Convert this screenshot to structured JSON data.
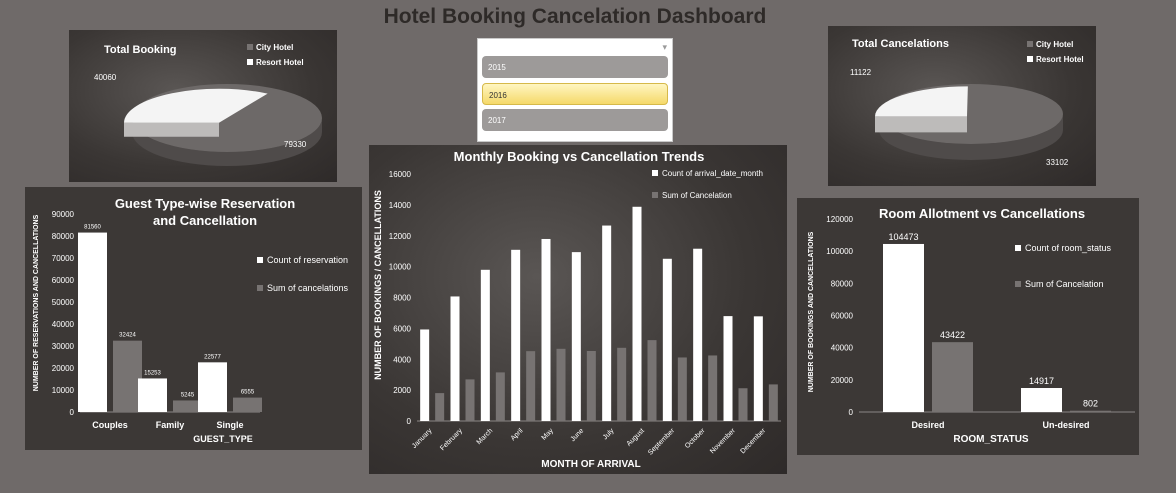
{
  "dashboard_title": "Hotel Booking Cancelation Dashboard",
  "colors": {
    "background": "#6f6a69",
    "series_light": "#ffffff",
    "series_dark": "#777372",
    "text_light": "#ffffff"
  },
  "slicer": {
    "items": [
      {
        "label": "2015",
        "selected": false
      },
      {
        "label": "2016",
        "selected": true
      },
      {
        "label": "2017",
        "selected": false
      }
    ]
  },
  "chart_data": [
    {
      "id": "total_booking",
      "type": "pie",
      "title": "Total Booking",
      "legend": [
        "City Hotel",
        "Resort Hotel"
      ],
      "labels": [
        "City Hotel",
        "Resort Hotel"
      ],
      "values": [
        79330,
        40060
      ]
    },
    {
      "id": "total_cancelations",
      "type": "pie",
      "title": "Total Cancelations",
      "legend": [
        "City Hotel",
        "Resort Hotel"
      ],
      "labels": [
        "City Hotel",
        "Resort Hotel"
      ],
      "values": [
        33102,
        11122
      ]
    },
    {
      "id": "guest_type",
      "type": "bar",
      "title": "Guest Type-wise Reservation and Cancellation",
      "title_lines": [
        "Guest Type-wise Reservation",
        "and Cancellation"
      ],
      "xlabel": "GUEST_TYPE",
      "ylabel": "NUMBER OF RESERVATIONS AND CANCELLATIONS",
      "categories": [
        "Couples",
        "Family",
        "Single"
      ],
      "series": [
        {
          "name": "Count of reservation",
          "values": [
            81560,
            15253,
            22577
          ]
        },
        {
          "name": "Sum of cancelations",
          "values": [
            32424,
            5245,
            6555
          ]
        }
      ],
      "ylim": [
        0,
        90000
      ],
      "yticks": [
        "0",
        "10000",
        "20000",
        "30000",
        "40000",
        "50000",
        "60000",
        "70000",
        "80000",
        "90000"
      ],
      "legend_position": "right"
    },
    {
      "id": "monthly",
      "type": "bar",
      "title": "Monthly Booking vs Cancellation Trends",
      "xlabel": "MONTH OF ARRIVAL",
      "ylabel": "NUMBER OF BOOKINGS / CANCELLATIONS",
      "categories": [
        "January",
        "February",
        "March",
        "April",
        "May",
        "June",
        "July",
        "August",
        "September",
        "October",
        "November",
        "December"
      ],
      "series": [
        {
          "name": "Count of arrival_date_month",
          "values": [
            5929,
            8068,
            9794,
            11089,
            11791,
            10939,
            12661,
            13877,
            10508,
            11160,
            6794,
            6780
          ]
        },
        {
          "name": "Sum of Cancelation",
          "values": [
            1807,
            2696,
            3149,
            4524,
            4677,
            4535,
            4742,
            5239,
            4116,
            4246,
            2122,
            2371
          ]
        }
      ],
      "ylim": [
        0,
        16000
      ],
      "yticks": [
        "0",
        "2000",
        "4000",
        "6000",
        "8000",
        "10000",
        "12000",
        "14000",
        "16000"
      ],
      "legend_position": "top-right"
    },
    {
      "id": "room_allotment",
      "type": "bar",
      "title": "Room Allotment vs Cancellations",
      "xlabel": "ROOM_STATUS",
      "ylabel": "NUMBER OF BOOKINGS AND CANCELLATIONS",
      "categories": [
        "Desired",
        "Un-desired"
      ],
      "series": [
        {
          "name": "Count of room_status",
          "values": [
            104473,
            14917
          ]
        },
        {
          "name": "Sum of Cancelation",
          "values": [
            43422,
            802
          ]
        }
      ],
      "ylim": [
        0,
        120000
      ],
      "yticks": [
        "0",
        "20000",
        "40000",
        "60000",
        "80000",
        "100000",
        "120000"
      ],
      "legend_position": "right"
    }
  ]
}
